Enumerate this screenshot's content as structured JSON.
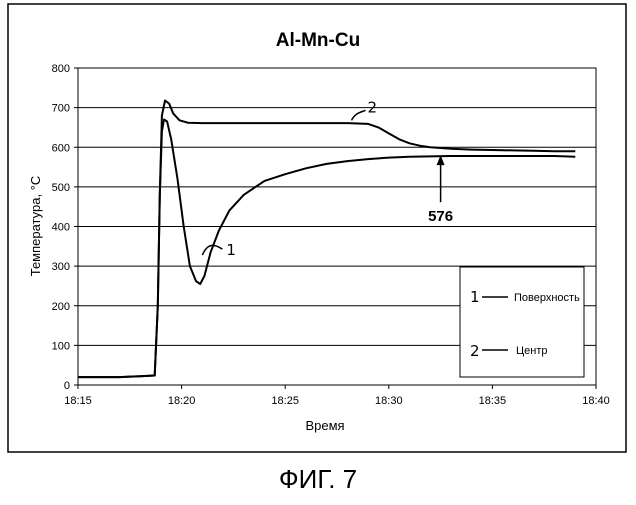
{
  "chart_data": {
    "type": "line",
    "title": "Al-Mn-Cu",
    "xlabel": "Время",
    "ylabel": "Температура, °С",
    "x_ticks_minutes": [
      0,
      5,
      10,
      15,
      20,
      25
    ],
    "x_tick_labels": [
      "18:15",
      "18:20",
      "18:25",
      "18:30",
      "18:35",
      "18:40"
    ],
    "x_range_minutes": [
      0,
      25
    ],
    "x_origin_time": "18:15",
    "ylim": [
      0,
      800
    ],
    "y_ticks": [
      0,
      100,
      200,
      300,
      400,
      500,
      600,
      700,
      800
    ],
    "y_tick_labels": [
      "0",
      "100",
      "200",
      "300",
      "400",
      "500",
      "600",
      "700",
      "800"
    ],
    "grid": "horizontal",
    "series": [
      {
        "name": "Поверхность",
        "marker": "1",
        "x": [
          0,
          1.0,
          2.0,
          3.0,
          3.7,
          3.85,
          3.95,
          4.05,
          4.15,
          4.3,
          4.5,
          4.8,
          5.1,
          5.4,
          5.7,
          5.9,
          6.1,
          6.4,
          6.8,
          7.3,
          8.0,
          9.0,
          10.0,
          11.0,
          12.0,
          13.0,
          14.0,
          15.0,
          16.0,
          17.0,
          18.0,
          19.0,
          20.0,
          21.0,
          22.0,
          23.0,
          24.0
        ],
        "values": [
          20,
          20,
          20,
          22,
          24,
          200,
          480,
          640,
          670,
          665,
          620,
          520,
          400,
          300,
          262,
          255,
          275,
          335,
          390,
          440,
          480,
          515,
          532,
          547,
          558,
          565,
          570,
          574,
          576,
          577,
          578,
          578,
          578,
          578,
          578,
          578,
          576
        ]
      },
      {
        "name": "Центр",
        "marker": "2",
        "x": [
          0,
          1.0,
          2.0,
          3.0,
          3.7,
          3.85,
          3.95,
          4.05,
          4.2,
          4.4,
          4.6,
          4.9,
          5.3,
          6.0,
          8.0,
          10.0,
          12.0,
          13.0,
          13.5,
          14.0,
          14.5,
          15.0,
          15.5,
          16.0,
          16.5,
          17.0,
          17.5,
          18.0,
          19.0,
          20.0,
          21.0,
          22.0,
          23.0,
          24.0
        ],
        "values": [
          20,
          20,
          20,
          22,
          24,
          200,
          480,
          680,
          718,
          710,
          685,
          668,
          662,
          661,
          661,
          661,
          661,
          661,
          660,
          659,
          650,
          635,
          620,
          610,
          604,
          600,
          598,
          596,
          594,
          593,
          592,
          591,
          590,
          590
        ]
      }
    ],
    "annotations": [
      {
        "text": "576",
        "target_minutes": 17.5,
        "target_value": 580
      }
    ],
    "hand_labels": [
      "1",
      "2"
    ],
    "legend": {
      "placement": "bottom-right",
      "entries": [
        {
          "marker": "1",
          "label": "Поверхность"
        },
        {
          "marker": "2",
          "label": "Центр"
        }
      ]
    }
  },
  "figure_caption": "ФИГ. 7"
}
